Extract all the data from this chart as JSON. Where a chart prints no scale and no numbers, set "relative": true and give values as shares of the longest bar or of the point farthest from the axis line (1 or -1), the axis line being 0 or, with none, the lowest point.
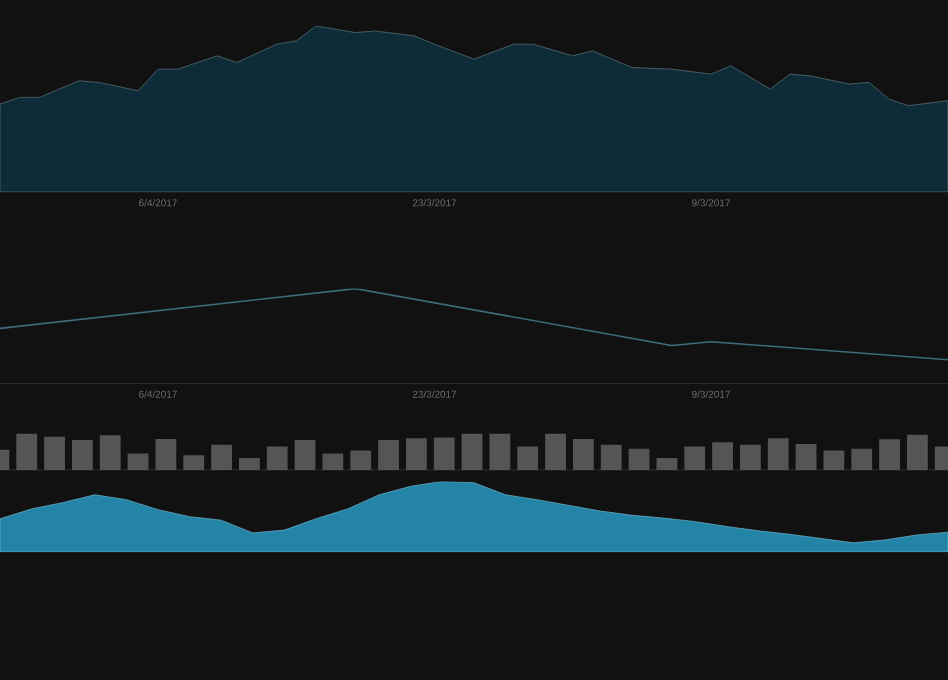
{
  "chart_data": [
    {
      "type": "area",
      "relative": true,
      "color": "#0e2c38",
      "xlim": [
        "2017-04-14",
        "2017-02-25"
      ],
      "xticks": [
        {
          "value": "2017-04-06",
          "label": "6/4/2017"
        },
        {
          "value": "2017-03-23",
          "label": "23/3/2017"
        },
        {
          "value": "2017-03-09",
          "label": "9/3/2017"
        }
      ],
      "x": [
        "2017-04-14",
        "2017-04-13",
        "2017-04-12",
        "2017-04-10",
        "2017-04-09",
        "2017-04-07",
        "2017-04-06",
        "2017-04-05",
        "2017-04-03",
        "2017-04-02",
        "2017-03-31",
        "2017-03-30",
        "2017-03-29",
        "2017-03-27",
        "2017-03-26",
        "2017-03-24",
        "2017-03-23",
        "2017-03-21",
        "2017-03-19",
        "2017-03-18",
        "2017-03-16",
        "2017-03-15",
        "2017-03-13",
        "2017-03-11",
        "2017-03-09",
        "2017-03-08",
        "2017-03-06",
        "2017-03-05",
        "2017-03-04",
        "2017-03-02",
        "2017-03-01",
        "2017-02-28",
        "2017-02-27",
        "2017-02-25"
      ],
      "values": [
        0.53,
        0.57,
        0.57,
        0.67,
        0.66,
        0.61,
        0.74,
        0.74,
        0.82,
        0.78,
        0.89,
        0.91,
        1,
        0.96,
        0.97,
        0.94,
        0.89,
        0.8,
        0.89,
        0.89,
        0.82,
        0.85,
        0.75,
        0.74,
        0.71,
        0.76,
        0.62,
        0.71,
        0.7,
        0.65,
        0.66,
        0.56,
        0.52,
        0.55
      ]
    },
    {
      "type": "line",
      "relative": true,
      "color": "#3b6e7a",
      "xlim": [
        "2017-04-14",
        "2017-02-25"
      ],
      "xticks": [
        {
          "value": "2017-04-06",
          "label": "6/4/2017"
        },
        {
          "value": "2017-03-23",
          "label": "23/3/2017"
        },
        {
          "value": "2017-03-09",
          "label": "9/3/2017"
        }
      ],
      "x": [
        "2017-04-14",
        "2017-03-27",
        "2017-03-11",
        "2017-03-09",
        "2017-02-25"
      ],
      "values": [
        0.58,
        1,
        0.4,
        0.44,
        0.25
      ]
    },
    {
      "type": "bar",
      "relative": true,
      "color": "#555555",
      "categories": [
        null,
        null,
        null,
        null,
        null,
        null,
        null,
        null,
        null,
        null,
        null,
        null,
        null,
        null,
        null,
        null,
        null,
        null,
        null,
        null,
        null,
        null,
        null,
        null,
        null,
        null,
        null,
        null,
        null,
        null,
        null,
        null,
        null,
        null,
        null
      ],
      "values": [
        0.55,
        1,
        0.91,
        0.82,
        0.95,
        0.45,
        0.85,
        0.4,
        0.69,
        0.33,
        0.64,
        0.82,
        0.45,
        0.53,
        0.82,
        0.87,
        0.89,
        1,
        1,
        0.64,
        1,
        0.85,
        0.69,
        0.58,
        0.33,
        0.64,
        0.76,
        0.69,
        0.87,
        0.71,
        0.53,
        0.58,
        0.84,
        0.96,
        0.64
      ]
    },
    {
      "type": "area",
      "relative": true,
      "color": "#2384a8",
      "categories": [
        null,
        null,
        null,
        null,
        null,
        null,
        null,
        null,
        null,
        null,
        null,
        null,
        null,
        null,
        null,
        null,
        null,
        null,
        null,
        null,
        null,
        null,
        null,
        null,
        null,
        null,
        null,
        null,
        null,
        null,
        null
      ],
      "values": [
        0.47,
        0.61,
        0.7,
        0.81,
        0.74,
        0.6,
        0.5,
        0.45,
        0.27,
        0.31,
        0.47,
        0.61,
        0.81,
        0.93,
        1,
        0.98,
        0.81,
        0.74,
        0.66,
        0.58,
        0.52,
        0.48,
        0.43,
        0.36,
        0.3,
        0.25,
        0.19,
        0.13,
        0.17,
        0.24,
        0.28
      ]
    }
  ]
}
